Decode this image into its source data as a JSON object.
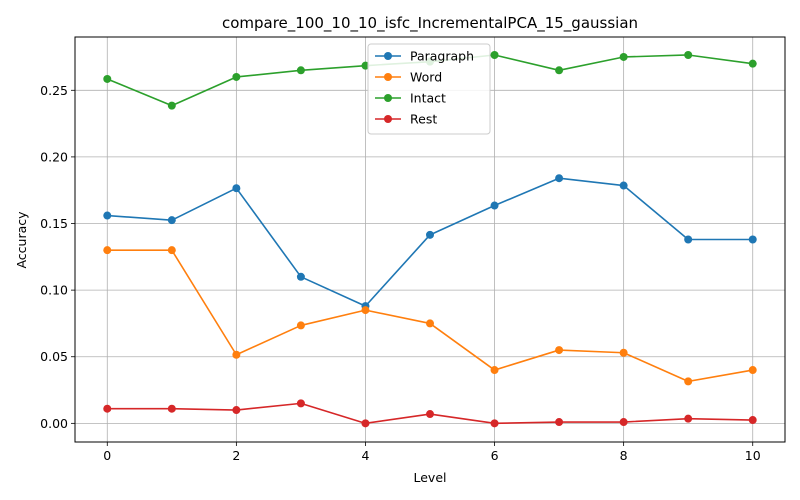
{
  "chart_data": {
    "type": "line",
    "title": "compare_100_10_10_isfc_IncrementalPCA_15_gaussian",
    "xlabel": "Level",
    "ylabel": "Accuracy",
    "x": [
      0,
      1,
      2,
      3,
      4,
      5,
      6,
      7,
      8,
      9,
      10
    ],
    "xlim": [
      -0.5,
      10.5
    ],
    "ylim": [
      -0.014,
      0.29
    ],
    "xticks": [
      0,
      2,
      4,
      6,
      8,
      10
    ],
    "xtick_labels": [
      "0",
      "2",
      "4",
      "6",
      "8",
      "10"
    ],
    "yticks": [
      0.0,
      0.05,
      0.1,
      0.15,
      0.2,
      0.25
    ],
    "ytick_labels": [
      "0.00",
      "0.05",
      "0.10",
      "0.15",
      "0.20",
      "0.25"
    ],
    "grid": true,
    "legend_position": "top-center",
    "series": [
      {
        "name": "Paragraph",
        "color": "#1f77b4",
        "values": [
          0.156,
          0.1525,
          0.1765,
          0.11,
          0.088,
          0.1415,
          0.1635,
          0.184,
          0.1785,
          0.138,
          0.138
        ]
      },
      {
        "name": "Word",
        "color": "#ff7f0e",
        "values": [
          0.13,
          0.13,
          0.0515,
          0.0735,
          0.085,
          0.075,
          0.04,
          0.055,
          0.053,
          0.0315,
          0.04
        ]
      },
      {
        "name": "Intact",
        "color": "#2ca02c",
        "values": [
          0.2585,
          0.2385,
          0.26,
          0.265,
          0.2685,
          0.2715,
          0.2765,
          0.265,
          0.275,
          0.2765,
          0.27
        ]
      },
      {
        "name": "Rest",
        "color": "#d62728",
        "values": [
          0.011,
          0.011,
          0.01,
          0.015,
          0.0,
          0.007,
          0.0,
          0.001,
          0.001,
          0.0035,
          0.0025
        ]
      }
    ]
  }
}
